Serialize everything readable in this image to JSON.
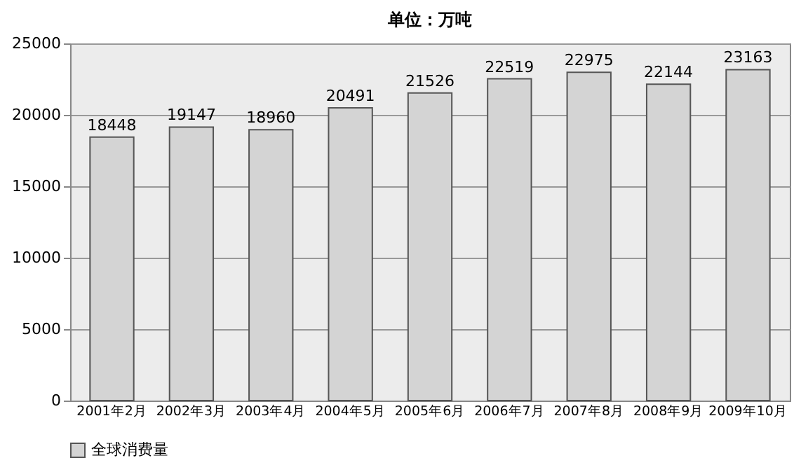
{
  "chart_data": {
    "type": "bar",
    "title": "单位：万吨",
    "categories": [
      "2001年2月",
      "2002年3月",
      "2003年4月",
      "2004年5月",
      "2005年6月",
      "2006年7月",
      "2007年8月",
      "2008年9月",
      "2009年10月"
    ],
    "series": [
      {
        "name": "全球消费量",
        "color": "#d4d4d4",
        "values": [
          18448,
          19147,
          18960,
          20491,
          21526,
          22519,
          22975,
          22144,
          23163
        ]
      }
    ],
    "ylim": [
      0,
      25000
    ],
    "yticks": [
      0,
      5000,
      10000,
      15000,
      20000,
      25000
    ],
    "grid": "y",
    "legend": "bottom",
    "data_labels": true
  }
}
